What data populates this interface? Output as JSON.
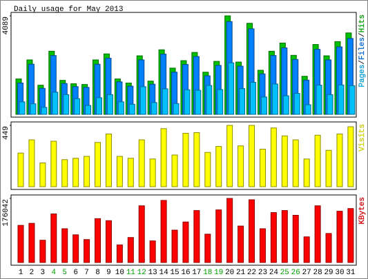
{
  "chart_data": [
    {
      "type": "grouped-bar",
      "title": "Daily usage for May 2013",
      "ylim": [
        0,
        4089
      ],
      "yticks": [
        4089
      ],
      "legend_separator": "/",
      "series": [
        {
          "name": "Pages",
          "color": "#00c0ff",
          "values": [
            520,
            440,
            290,
            920,
            820,
            650,
            370,
            690,
            820,
            520,
            420,
            1150,
            490,
            1060,
            450,
            1020,
            1000,
            1200,
            1030,
            2140,
            1070,
            1330,
            720,
            1260,
            770,
            870,
            400,
            1210,
            820,
            1220,
            1190
          ]
        },
        {
          "name": "Files",
          "color": "#0080ff",
          "values": [
            1300,
            2080,
            1080,
            2440,
            1280,
            1150,
            1120,
            2080,
            2330,
            1350,
            1170,
            2260,
            1250,
            2500,
            1750,
            2070,
            2400,
            1600,
            2030,
            3850,
            2000,
            3550,
            1680,
            2440,
            2760,
            2280,
            1420,
            2700,
            2260,
            2800,
            3150
          ]
        },
        {
          "name": "Hits",
          "color": "#00c000",
          "values": [
            1470,
            2260,
            1210,
            2620,
            1410,
            1270,
            1240,
            2260,
            2510,
            1470,
            1300,
            2430,
            1380,
            2680,
            1920,
            2230,
            2570,
            1750,
            2200,
            4089,
            2170,
            3780,
            1830,
            2620,
            2960,
            2450,
            1580,
            2900,
            2430,
            3020,
            3380
          ]
        }
      ]
    },
    {
      "type": "bar",
      "ylim": [
        0,
        449
      ],
      "yticks": [
        449
      ],
      "series": [
        {
          "name": "Visits",
          "color": "#ffff00",
          "values": [
            246,
            343,
            174,
            333,
            198,
            208,
            222,
            324,
            386,
            222,
            208,
            343,
            203,
            425,
            232,
            391,
            396,
            251,
            295,
            449,
            299,
            449,
            275,
            430,
            372,
            343,
            203,
            377,
            266,
            386,
            439
          ]
        }
      ]
    },
    {
      "type": "bar",
      "ylim": [
        0,
        176042
      ],
      "yticks": [
        176042
      ],
      "categories": [
        "1",
        "2",
        "3",
        "4",
        "5",
        "6",
        "7",
        "8",
        "9",
        "10",
        "11",
        "12",
        "13",
        "14",
        "15",
        "16",
        "17",
        "18",
        "19",
        "20",
        "21",
        "22",
        "23",
        "24",
        "25",
        "26",
        "27",
        "28",
        "29",
        "30",
        "31"
      ],
      "highlighted_categories": [
        3,
        4,
        10,
        11,
        17,
        18,
        24,
        25
      ],
      "highlight_color": "#00a000",
      "series": [
        {
          "name": "KBytes",
          "color": "#ff0000",
          "values": [
            101900,
            107500,
            61100,
            133400,
            92700,
            76000,
            63000,
            120400,
            114900,
            48200,
            68600,
            155700,
            59300,
            170500,
            88900,
            111200,
            142700,
            77800,
            144500,
            176042,
            100100,
            172300,
            92700,
            137100,
            142700,
            129700,
            70400,
            155700,
            79700,
            140800,
            148200
          ]
        }
      ]
    }
  ]
}
